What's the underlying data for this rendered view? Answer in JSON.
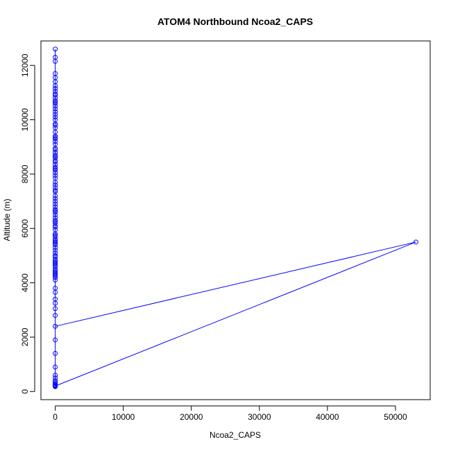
{
  "chart_data": {
    "type": "scatter",
    "title": "ATOM4 Northbound Ncoa2_CAPS",
    "xlabel": "Ncoa2_CAPS",
    "ylabel": "Altitude (m)",
    "xlim": [
      -2100,
      55100
    ],
    "ylim": [
      -300,
      12900
    ],
    "xticks": [
      0,
      10000,
      20000,
      30000,
      40000,
      50000
    ],
    "xtick_labels": [
      "0",
      "10000",
      "20000",
      "30000",
      "40000",
      "50000"
    ],
    "yticks": [
      0,
      2000,
      4000,
      6000,
      8000,
      10000,
      12000
    ],
    "ytick_labels": [
      "0",
      "2000",
      "4000",
      "6000",
      "8000",
      "10000",
      "12000"
    ],
    "grid": false,
    "legend": "none",
    "color": "#0000ff",
    "series": [
      {
        "x": [
          0,
          0,
          0,
          0,
          0,
          0,
          0,
          0,
          0,
          0,
          0,
          0,
          0,
          0,
          0,
          0,
          0,
          0,
          0,
          0,
          0,
          0,
          0,
          0,
          0,
          0,
          0,
          0,
          0,
          0,
          0,
          0,
          0,
          0,
          0,
          0,
          0,
          0,
          0,
          0,
          0,
          0,
          0,
          0,
          0,
          0,
          0,
          0,
          0,
          0,
          0,
          0,
          0,
          0,
          0,
          0,
          0,
          0,
          0,
          0,
          0,
          0,
          0,
          0,
          0,
          0,
          0,
          0,
          0,
          0,
          0,
          0,
          0,
          0,
          0,
          0,
          0,
          0,
          0,
          0,
          0,
          0,
          0,
          0,
          0,
          0,
          0,
          0,
          0,
          0,
          0,
          0,
          0,
          0,
          0,
          0,
          0,
          0,
          0,
          0,
          0,
          0,
          0,
          0,
          0,
          0,
          0,
          0,
          0,
          0,
          0,
          0,
          0,
          0,
          53000,
          0
        ],
        "y": [
          12600,
          12150,
          11550,
          11400,
          11250,
          11050,
          10950,
          10900,
          10800,
          10650,
          10600,
          10500,
          10400,
          10300,
          10100,
          10000,
          9850,
          9400,
          9350,
          9300,
          9100,
          8800,
          8700,
          8650,
          8600,
          8500,
          8350,
          8250,
          8200,
          8150,
          8050,
          7950,
          7850,
          7500,
          7350,
          7200,
          7100,
          7000,
          6900,
          6700,
          6650,
          6500,
          6400,
          6300,
          6250,
          6200,
          6100,
          6050,
          5800,
          5750,
          5700,
          5600,
          5550,
          5500,
          5450,
          5400,
          5300,
          5200,
          5100,
          5000,
          4850,
          4800,
          4750,
          4700,
          4650,
          4600,
          4450,
          4400,
          4350,
          4250,
          4200,
          3400,
          3250,
          3050,
          1400,
          500,
          350,
          300,
          250,
          200,
          180,
          9800,
          9550,
          9200,
          8950,
          8450,
          7700,
          6800,
          5950,
          4950,
          4300,
          3650,
          2800,
          1900,
          900,
          600,
          400,
          220,
          210,
          5000,
          4500,
          6600,
          7400,
          7600,
          8900,
          9700,
          10200,
          10700,
          11150,
          11700,
          12300,
          4100,
          3800,
          2400,
          5500,
          200
        ]
      }
    ]
  }
}
